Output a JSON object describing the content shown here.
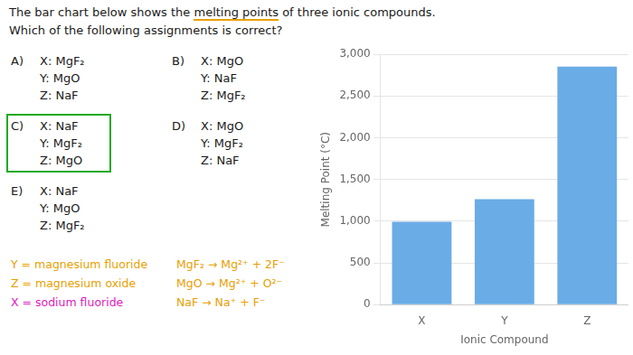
{
  "chart_data": {
    "type": "bar",
    "title": "The bar chart below shows the melting points of three ionic compounds.",
    "subtitle": "Which of the following assignments is correct?",
    "categories": [
      "X",
      "Y",
      "Z"
    ],
    "values": [
      993,
      1263,
      2852
    ],
    "color": "#6aace6",
    "xlabel": "Ionic Compound",
    "ylabel": "Melting Point (°C)",
    "ylim": [
      0,
      3000
    ],
    "yticks": [
      0,
      500,
      {
        "value": 1000,
        "label": "1,000"
      },
      {
        "value": 1500,
        "label": "1,500"
      },
      {
        "value": 2000,
        "label": "2,000"
      },
      {
        "value": 2500,
        "label": "2,500"
      },
      {
        "value": 3000,
        "label": "3,000"
      }
    ],
    "grid": "y",
    "annotations": [
      {
        "underline": "melting points",
        "color": "#e8a000"
      },
      {
        "text": "A)",
        "lines": [
          "X: MgF₂",
          "Y: MgO",
          "Z: NaF"
        ]
      },
      {
        "text": "B)",
        "lines": [
          "X: MgO",
          "Y: NaF",
          "Z: MgF₂"
        ]
      },
      {
        "text": "C)",
        "lines": [
          "X: NaF",
          "Y: MgF₂",
          "Z: MgO"
        ],
        "highlight": "#22aa22"
      },
      {
        "text": "D)",
        "lines": [
          "X: MgO",
          "Y: MgF₂",
          "Z: NaF"
        ]
      },
      {
        "text": "E)",
        "lines": [
          "X: NaF",
          "Y: MgO",
          "Z: MgF₂"
        ]
      },
      {
        "lines": [
          "Y = magnesium fluoride",
          "Z = magnesium oxide",
          "X = sodium fluoride"
        ],
        "colors": [
          "#e8a000",
          "#e8a000",
          "#e020c0"
        ]
      },
      {
        "lines": [
          "MgF₂ → Mg²⁺ + 2F⁻",
          "MgO → Mg²⁺ + O²⁻",
          "NaF → Na⁺ + F⁻"
        ],
        "color": "#e8a000"
      }
    ]
  }
}
